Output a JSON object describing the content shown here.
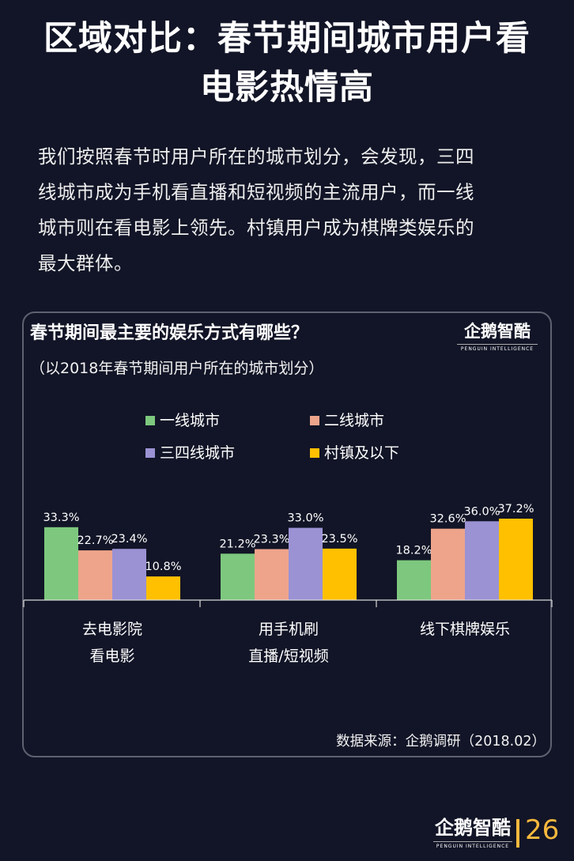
{
  "page": {
    "title_lines": [
      "区域对比：春节期间城市用户看",
      "电影热情高"
    ],
    "intro_lines": [
      "我们按照春节时用户所在的城市划分，会发现，三四",
      "线城市成为手机看直播和短视频的主流用户，而一线",
      "城市则在看电影上领先。村镇用户成为棋牌类娱乐的",
      "最大群体。"
    ],
    "page_number": "26",
    "logo": {
      "name": "企鹅智酷",
      "english": "PENGUIN INTELLIGENCE"
    }
  },
  "chart_data": {
    "type": "bar",
    "title": "春节期间最主要的娱乐方式有哪些？",
    "subtitle": "（以2018年春节期间用户所在的城市划分）",
    "categories": [
      [
        "去电影院",
        "看电影"
      ],
      [
        "用手机刷",
        "直播/短视频"
      ],
      [
        "线下棋牌娱乐"
      ]
    ],
    "series": [
      {
        "name": "一线城市",
        "color": "#7dc87e",
        "values": [
          33.3,
          21.2,
          18.2
        ]
      },
      {
        "name": "二线城市",
        "color": "#eea48b",
        "values": [
          22.7,
          23.3,
          32.6
        ]
      },
      {
        "name": "三四线城市",
        "color": "#9b92d4",
        "values": [
          23.4,
          33.0,
          36.0
        ]
      },
      {
        "name": "村镇及以下",
        "color": "#ffc000",
        "values": [
          10.8,
          23.5,
          37.2
        ]
      }
    ],
    "value_suffix": "%",
    "legend_position": "top",
    "grid": false,
    "source": "数据来源：企鹅调研（2018.02）"
  }
}
